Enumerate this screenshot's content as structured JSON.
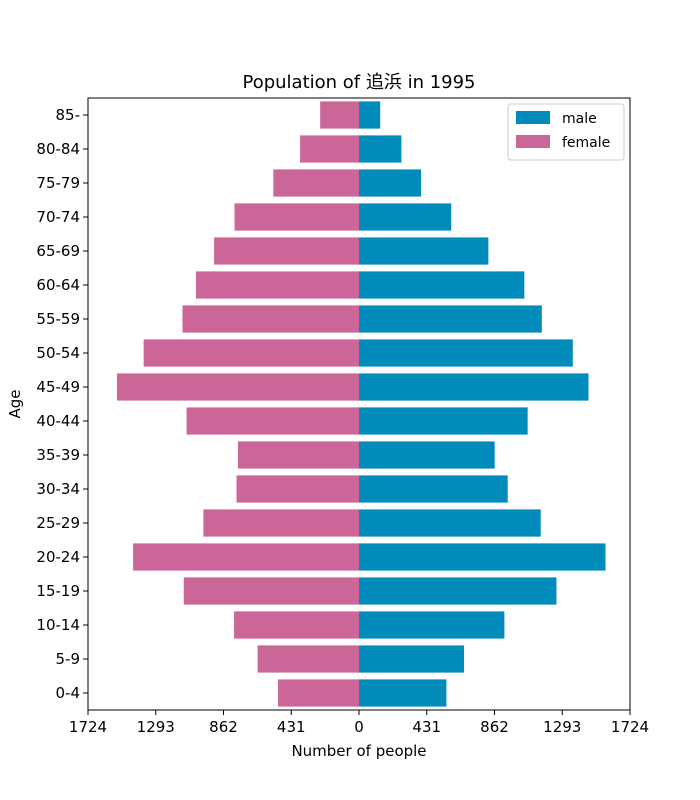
{
  "chart_data": {
    "type": "bar",
    "orientation": "horizontal",
    "title": "Population of 追浜 in 1995",
    "xlabel": "Number of people",
    "ylabel": "Age",
    "xlim": [
      -1724,
      1724
    ],
    "xticks": [
      -1724,
      -1293,
      -862,
      -431,
      0,
      431,
      862,
      1293,
      1724
    ],
    "xtick_labels": [
      "1724",
      "1293",
      "862",
      "431",
      "0",
      "431",
      "862",
      "1293",
      "1724"
    ],
    "categories": [
      "0-4",
      "5-9",
      "10-14",
      "15-19",
      "20-24",
      "25-29",
      "30-34",
      "35-39",
      "40-44",
      "45-49",
      "50-54",
      "55-59",
      "60-64",
      "65-69",
      "70-74",
      "75-79",
      "80-84",
      "85-"
    ],
    "series": [
      {
        "name": "male",
        "color": "#008bbb",
        "values": [
          556,
          668,
          925,
          1256,
          1568,
          1156,
          946,
          863,
          1073,
          1460,
          1360,
          1163,
          1052,
          823,
          587,
          395,
          270,
          135
        ]
      },
      {
        "name": "female",
        "color": "#cc6699",
        "values": [
          515,
          645,
          795,
          1115,
          1437,
          990,
          779,
          770,
          1097,
          1540,
          1370,
          1123,
          1037,
          922,
          792,
          545,
          375,
          247
        ]
      }
    ],
    "legend": {
      "position": "top-right",
      "entries": [
        "male",
        "female"
      ]
    },
    "grid": false
  }
}
